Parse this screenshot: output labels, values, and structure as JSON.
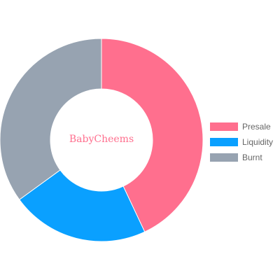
{
  "chart_data": {
    "type": "pie",
    "variant": "doughnut",
    "center_text": "BabyCheems",
    "categories": [
      "Presale",
      "Liquidity",
      "Burnt"
    ],
    "values": [
      43,
      22,
      35
    ],
    "colors": [
      "#ff6f8e",
      "#0aa0ff",
      "#97a3b1"
    ],
    "legend_position": "right",
    "center_text_color": "#ff6f8e"
  }
}
